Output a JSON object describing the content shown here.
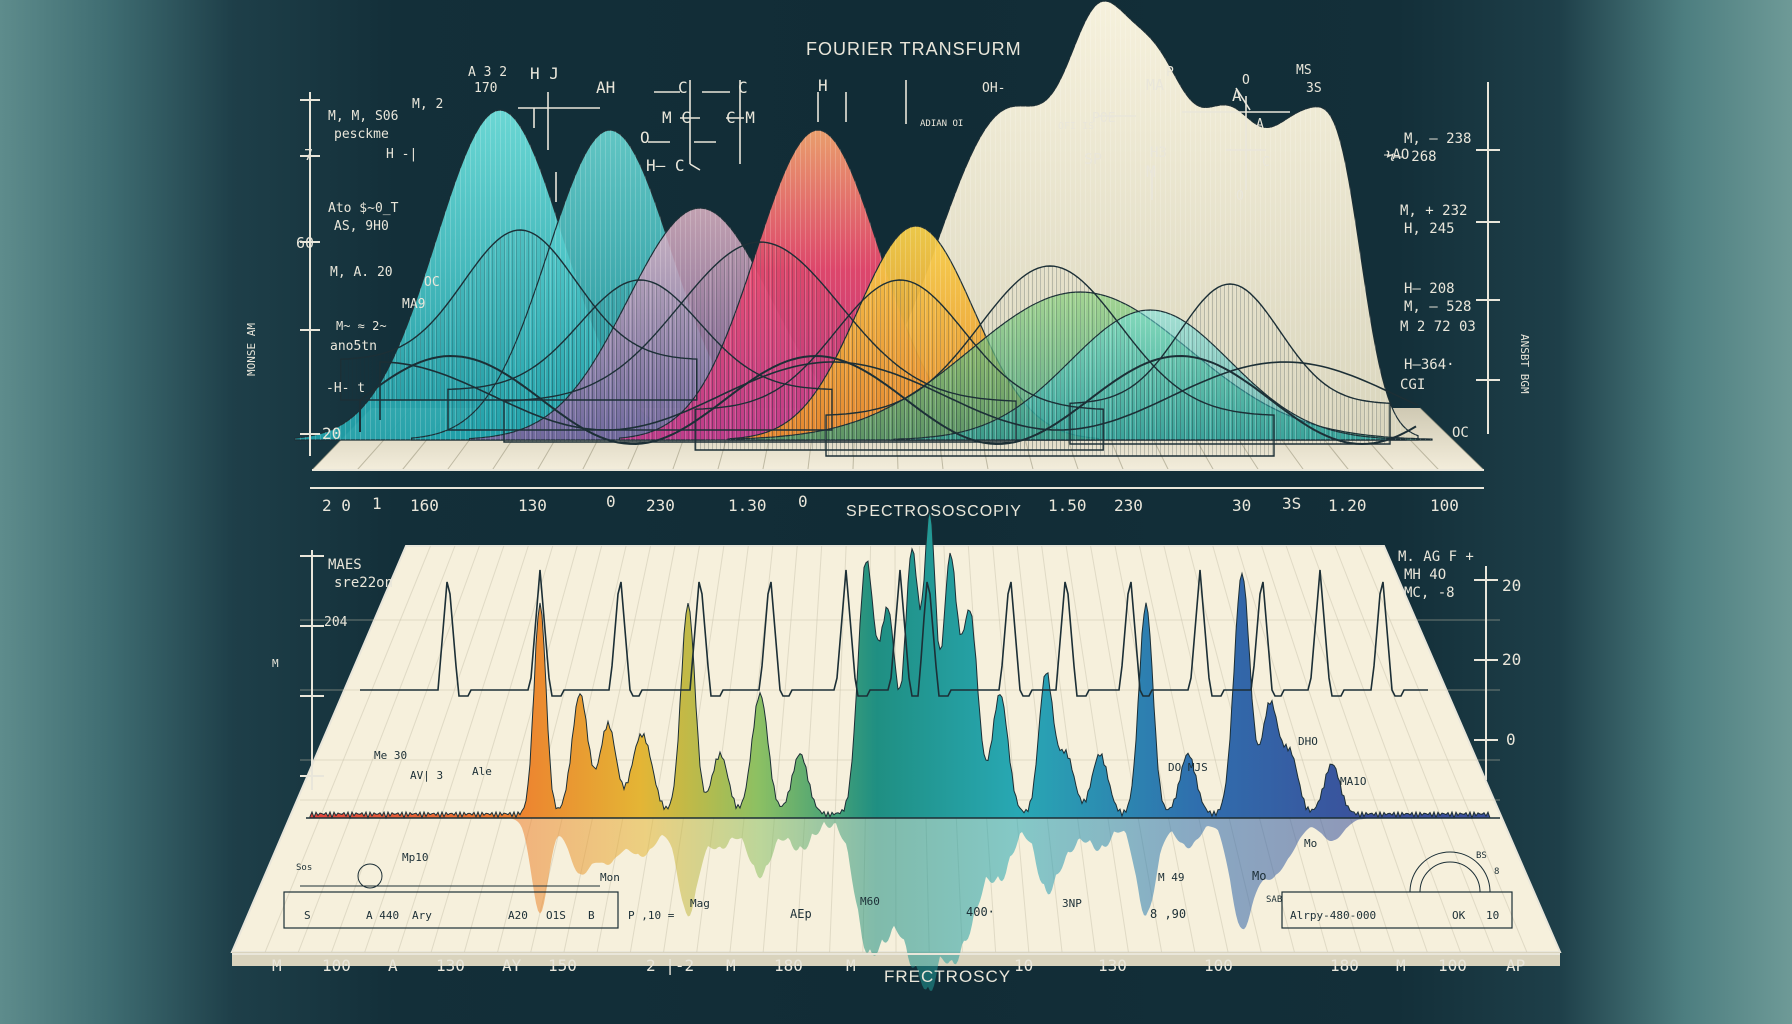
{
  "title_top": "FOURIER TRANSFURM",
  "title_mid": "SPECTROSOSCOPIY",
  "title_bottom": "FRECTROSCY",
  "colors": {
    "background": "#132f39",
    "paper": "#f6f0dc",
    "ink": "#e9e6da",
    "dark_ink": "#1c2f36",
    "teal": "#3cc6c4",
    "pink": "#e14c74",
    "yellow": "#f2b632",
    "violet": "#b792c3",
    "green": "#7cc46a",
    "blue": "#3a67b0",
    "red": "#e0443d"
  },
  "upper_axis_labels": [
    "2 0",
    "1",
    "160",
    "130",
    "0",
    "230",
    "1.30",
    "0",
    "1.50",
    "230",
    "30",
    "3S",
    "1.20",
    "100"
  ],
  "lower_axis_labels": [
    "M",
    "100",
    "A",
    "130",
    "AY",
    "150",
    "2 |-2",
    "M",
    "180",
    "M",
    "10",
    "130",
    "100",
    "180",
    "M",
    "100",
    "AP"
  ],
  "right_axis_lower": [
    "20",
    "20",
    "0"
  ],
  "left_scale_upper": [
    "7",
    "60",
    "20"
  ],
  "left_side_label": "MONSE AM",
  "right_side_label": "ANSBT BGM",
  "left_annotations": [
    "M, M, S06",
    "pesckme",
    "M, 2",
    "H -|",
    "Ato $~0_T",
    "AS, 9H0",
    "M, A. 20",
    "OC",
    "MA9",
    "M~ ≈ 2~",
    "ano5tn",
    "-H- t"
  ],
  "top_annotations": [
    "A 3  2",
    "170",
    "H  J",
    "AH",
    "C",
    "C",
    "M C",
    "C M",
    "O",
    "H— C",
    "H",
    "OH-",
    "P",
    "MA",
    "MS",
    "3S",
    "A",
    "O",
    "POE",
    "A",
    "SP",
    "H3",
    "M",
    "C",
    "O",
    "ADIAN OI",
    "OFI IS"
  ],
  "right_annotations": [
    "M, — 238",
    "—AO",
    "Ϟ— 268",
    "M, + 232",
    "H, 245",
    "H— 208",
    "M, — 528",
    "M 2 72 03",
    "H—364·",
    "CGI",
    "OC"
  ],
  "lower_left_annotations": [
    "MAES",
    "sre22on",
    "204",
    "M"
  ],
  "lower_right_annotations": [
    "M. AG F +",
    "MH 4O",
    "MC, -8"
  ],
  "peak_labels": [
    "Me 30",
    "AV| 3",
    "Ale",
    "Mp10",
    "Mon",
    "Mag",
    "AEp",
    "M60",
    "400·",
    "3NP",
    "Mo",
    "M 49",
    "DO MJS",
    "DHO",
    "MA1O",
    "Mo",
    "SAB",
    "8 ,90"
  ],
  "bottom_box_left": [
    "S",
    "A 440",
    "Ary",
    "A20",
    "O1S",
    "B"
  ],
  "bottom_box_mid": "P ,10 =",
  "bottom_box_right": [
    "Alrpy-480-000",
    "OK",
    "10"
  ],
  "bottom_corner_labels": [
    "Sos",
    "BS",
    "8"
  ]
}
